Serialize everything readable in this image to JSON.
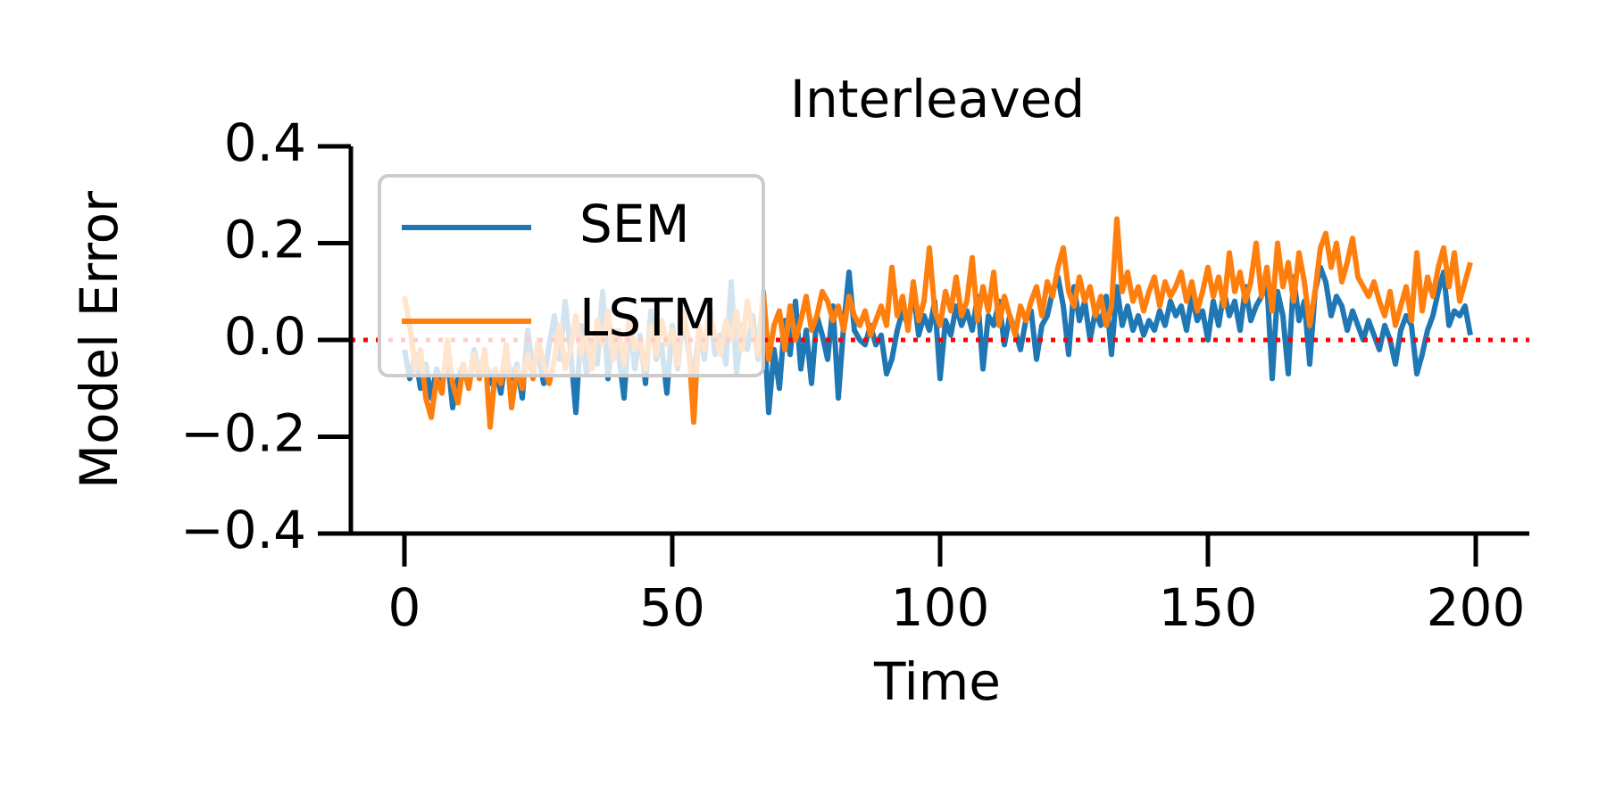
{
  "chart_data": {
    "type": "line",
    "title": "Interleaved",
    "x_label": "Time",
    "y_label": "Model Error",
    "x": [
      0,
      1,
      2,
      3,
      4,
      5,
      6,
      7,
      8,
      9,
      10,
      11,
      12,
      13,
      14,
      15,
      16,
      17,
      18,
      19,
      20,
      21,
      22,
      23,
      24,
      25,
      26,
      27,
      28,
      29,
      30,
      31,
      32,
      33,
      34,
      35,
      36,
      37,
      38,
      39,
      40,
      41,
      42,
      43,
      44,
      45,
      46,
      47,
      48,
      49,
      50,
      51,
      52,
      53,
      54,
      55,
      56,
      57,
      58,
      59,
      60,
      61,
      62,
      63,
      64,
      65,
      66,
      67,
      68,
      69,
      70,
      71,
      72,
      73,
      74,
      75,
      76,
      77,
      78,
      79,
      80,
      81,
      82,
      83,
      84,
      85,
      86,
      87,
      88,
      89,
      90,
      91,
      92,
      93,
      94,
      95,
      96,
      97,
      98,
      99,
      100,
      101,
      102,
      103,
      104,
      105,
      106,
      107,
      108,
      109,
      110,
      111,
      112,
      113,
      114,
      115,
      116,
      117,
      118,
      119,
      120,
      121,
      122,
      123,
      124,
      125,
      126,
      127,
      128,
      129,
      130,
      131,
      132,
      133,
      134,
      135,
      136,
      137,
      138,
      139,
      140,
      141,
      142,
      143,
      144,
      145,
      146,
      147,
      148,
      149,
      150,
      151,
      152,
      153,
      154,
      155,
      156,
      157,
      158,
      159,
      160,
      161,
      162,
      163,
      164,
      165,
      166,
      167,
      168,
      169,
      170,
      171,
      172,
      173,
      174,
      175,
      176,
      177,
      178,
      179,
      180,
      181,
      182,
      183,
      184,
      185,
      186,
      187,
      188,
      189,
      190,
      191,
      192,
      193,
      194,
      195,
      196,
      197,
      198,
      199
    ],
    "series": [
      {
        "name": "SEM",
        "color": "#1f77b4",
        "values": [
          -0.02,
          -0.08,
          -0.03,
          -0.1,
          -0.05,
          -0.12,
          -0.06,
          -0.09,
          -0.03,
          -0.14,
          -0.08,
          -0.05,
          -0.1,
          -0.02,
          -0.07,
          -0.04,
          -0.09,
          -0.06,
          -0.11,
          -0.03,
          -0.08,
          -0.05,
          -0.12,
          0.02,
          -0.06,
          -0.03,
          -0.09,
          -0.01,
          0.05,
          -0.04,
          0.08,
          -0.02,
          -0.15,
          0.03,
          -0.07,
          0.0,
          -0.05,
          0.1,
          -0.08,
          0.02,
          -0.03,
          -0.12,
          0.04,
          -0.06,
          0.01,
          -0.09,
          0.06,
          -0.04,
          -0.01,
          -0.11,
          0.03,
          -0.06,
          0.05,
          -0.02,
          -0.08,
          0.02,
          -0.04,
          0.07,
          -0.03,
          0.01,
          -0.05,
          0.12,
          -0.07,
          0.03,
          -0.02,
          0.05,
          -0.04,
          0.06,
          -0.15,
          -0.02,
          -0.1,
          0.04,
          -0.03,
          0.08,
          -0.06,
          0.02,
          -0.09,
          0.05,
          0.01,
          -0.04,
          0.07,
          -0.12,
          0.03,
          0.14,
          0.02,
          0.0,
          -0.01,
          0.03,
          -0.01,
          0.01,
          -0.07,
          -0.04,
          0.02,
          0.06,
          0.03,
          0.1,
          0.01,
          0.05,
          0.02,
          0.08,
          -0.08,
          0.04,
          0.01,
          0.07,
          0.03,
          0.06,
          0.02,
          0.09,
          -0.06,
          0.05,
          0.03,
          0.08,
          -0.01,
          0.05,
          0.02,
          -0.02,
          0.04,
          0.06,
          -0.04,
          0.03,
          0.05,
          0.1,
          0.13,
          0.07,
          -0.03,
          0.11,
          0.04,
          0.08,
          0.0,
          0.06,
          0.03,
          0.09,
          -0.03,
          0.11,
          0.03,
          0.07,
          0.02,
          0.05,
          0.01,
          0.04,
          0.02,
          0.06,
          0.03,
          0.08,
          0.05,
          0.07,
          0.02,
          0.09,
          0.04,
          0.06,
          0.0,
          0.08,
          0.03,
          0.1,
          0.05,
          0.08,
          0.02,
          0.11,
          0.04,
          0.07,
          0.09,
          0.12,
          -0.08,
          0.1,
          0.05,
          -0.07,
          0.13,
          0.04,
          0.08,
          -0.05,
          0.1,
          0.15,
          0.12,
          0.05,
          0.09,
          0.07,
          0.02,
          0.06,
          0.03,
          0.0,
          0.04,
          0.01,
          -0.02,
          0.03,
          0.0,
          -0.05,
          0.02,
          0.05,
          0.03,
          -0.07,
          -0.03,
          0.02,
          0.05,
          0.1,
          0.14,
          0.03,
          0.06,
          0.05,
          0.07,
          0.01
        ]
      },
      {
        "name": "LSTM",
        "color": "#ff7f0e",
        "values": [
          0.09,
          0.03,
          -0.06,
          -0.02,
          -0.12,
          -0.16,
          -0.08,
          -0.11,
          0.0,
          -0.09,
          -0.13,
          -0.05,
          -0.1,
          -0.03,
          -0.08,
          -0.02,
          -0.18,
          -0.06,
          -0.09,
          -0.01,
          -0.14,
          -0.06,
          -0.1,
          -0.03,
          -0.08,
          0.0,
          -0.05,
          -0.09,
          -0.04,
          0.03,
          -0.06,
          -0.02,
          0.05,
          -0.03,
          0.02,
          -0.06,
          0.04,
          -0.01,
          0.06,
          -0.04,
          0.02,
          -0.05,
          0.05,
          -0.02,
          0.0,
          -0.06,
          0.03,
          -0.03,
          0.04,
          -0.01,
          0.02,
          -0.05,
          0.06,
          0.0,
          -0.17,
          0.03,
          -0.02,
          0.05,
          0.01,
          -0.03,
          0.04,
          0.0,
          0.06,
          -0.02,
          0.08,
          0.02,
          -0.03,
          0.1,
          -0.04,
          0.03,
          0.06,
          -0.02,
          0.07,
          0.0,
          0.04,
          0.09,
          0.02,
          0.05,
          0.1,
          0.08,
          0.04,
          0.07,
          0.02,
          0.09,
          0.05,
          0.03,
          0.06,
          0.01,
          0.04,
          0.07,
          0.03,
          0.15,
          0.05,
          0.09,
          0.02,
          0.12,
          0.04,
          0.08,
          0.19,
          0.06,
          0.03,
          0.1,
          0.06,
          0.13,
          0.05,
          0.08,
          0.17,
          0.04,
          0.11,
          0.06,
          0.14,
          0.03,
          0.09,
          0.05,
          0.01,
          0.07,
          0.04,
          0.08,
          0.11,
          0.05,
          0.12,
          0.09,
          0.15,
          0.19,
          0.1,
          0.07,
          0.13,
          0.08,
          0.11,
          0.05,
          0.09,
          0.03,
          0.07,
          0.25,
          0.1,
          0.14,
          0.08,
          0.11,
          0.06,
          0.1,
          0.13,
          0.07,
          0.12,
          0.09,
          0.11,
          0.14,
          0.08,
          0.12,
          0.06,
          0.1,
          0.15,
          0.09,
          0.13,
          0.07,
          0.18,
          0.1,
          0.14,
          0.08,
          0.12,
          0.2,
          0.09,
          0.15,
          0.06,
          0.2,
          0.11,
          0.16,
          0.08,
          0.18,
          0.12,
          0.03,
          0.1,
          0.19,
          0.22,
          0.15,
          0.2,
          0.12,
          0.16,
          0.21,
          0.13,
          0.11,
          0.09,
          0.12,
          0.08,
          0.05,
          0.1,
          0.03,
          0.07,
          0.11,
          0.04,
          0.18,
          0.06,
          0.13,
          0.09,
          0.15,
          0.19,
          0.11,
          0.18,
          0.08,
          0.12,
          0.16
        ]
      }
    ],
    "xlim": [
      -10,
      210
    ],
    "xticks": [
      0,
      50,
      100,
      150,
      200
    ],
    "ylim": [
      -0.4,
      0.4
    ],
    "yticks": [
      {
        "value": -0.4,
        "label": "−0.4"
      },
      {
        "value": -0.2,
        "label": "−0.2"
      },
      {
        "value": 0,
        "label": "0.0"
      },
      0.2,
      0.4
    ],
    "hline": {
      "value": 0,
      "color": "#ff0000"
    },
    "legend": "upper left"
  }
}
